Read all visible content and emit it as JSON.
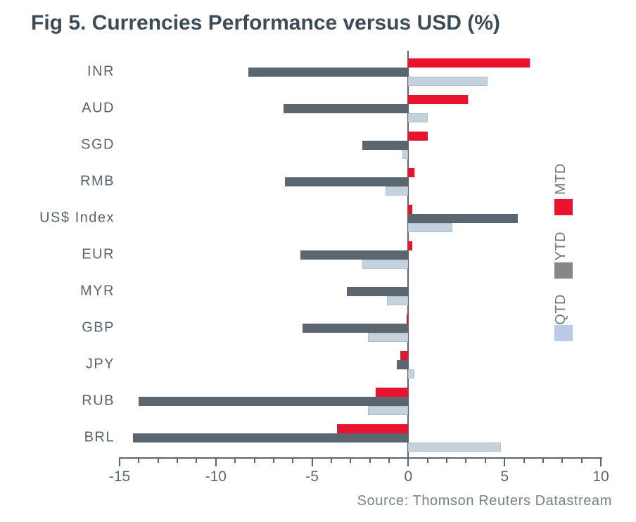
{
  "title": "Fig 5. Currencies Performance versus USD (%)",
  "source": "Source: Thomson Reuters Datastream",
  "legend": [
    {
      "label": "MTD",
      "color": "#E9132D"
    },
    {
      "label": "YTD",
      "color": "#85878A"
    },
    {
      "label": "QTD",
      "color": "#BACCE3"
    }
  ],
  "chart_data": {
    "type": "bar",
    "orientation": "horizontal",
    "title": "Fig 5. Currencies Performance versus USD (%)",
    "categories": [
      "INR",
      "AUD",
      "SGD",
      "RMB",
      "US$ Index",
      "EUR",
      "MYR",
      "GBP",
      "JPY",
      "RUB",
      "BRL"
    ],
    "series": [
      {
        "name": "MTD",
        "color": "#E9132D",
        "values": [
          6.3,
          3.1,
          1.0,
          0.3,
          0.2,
          0.2,
          0.0,
          -0.1,
          -0.4,
          -1.7,
          -3.7
        ]
      },
      {
        "name": "YTD",
        "color": "#5C6670",
        "values": [
          -8.3,
          -6.5,
          -2.4,
          -6.4,
          5.7,
          -5.6,
          -3.2,
          -5.5,
          -0.6,
          -14.0,
          -14.3
        ]
      },
      {
        "name": "QTD",
        "color": "#C3D2DD",
        "values": [
          4.1,
          1.0,
          -0.3,
          -1.2,
          2.3,
          -2.4,
          -1.1,
          -2.1,
          0.3,
          -2.1,
          4.8
        ]
      }
    ],
    "xlim": [
      -15,
      10
    ],
    "xticks": [
      -15,
      -10,
      -5,
      0,
      5,
      10
    ],
    "xtick_labels": [
      "-15",
      "-10",
      "-5",
      "0",
      "5",
      "10"
    ],
    "minor_tick_step": 1,
    "grid": false,
    "legend_position": "right",
    "zero_line": true
  }
}
